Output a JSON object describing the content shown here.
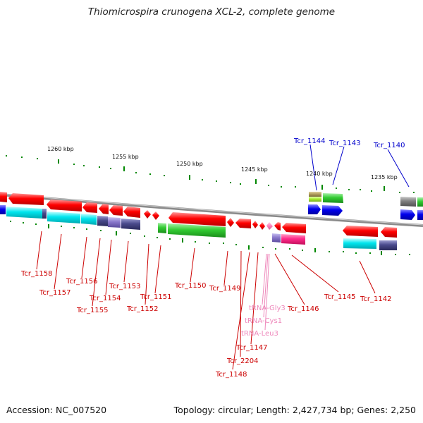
{
  "title": "Thiomicrospira crunogena XCL-2, complete genome",
  "footer": {
    "accession": "Accession: NC_007520",
    "topology": "Topology: circular; Length: 2,427,734 bp; Genes: 2,250"
  },
  "scale_labels": [
    {
      "text": "1260 kbp"
    },
    {
      "text": "1255 kbp"
    },
    {
      "text": "1250 kbp"
    },
    {
      "text": "1245 kbp"
    },
    {
      "text": "1240 kbp"
    },
    {
      "text": "1235 kbp"
    }
  ],
  "gene_labels": {
    "top": [
      {
        "text": "Tcr_1144"
      },
      {
        "text": "Tcr_1143"
      },
      {
        "text": "Tcr_1140"
      }
    ],
    "bottom": [
      {
        "text": "Tcr_1158"
      },
      {
        "text": "Tcr_1157"
      },
      {
        "text": "Tcr_1156"
      },
      {
        "text": "Tcr_1154"
      },
      {
        "text": "Tcr_1155"
      },
      {
        "text": "Tcr_1153"
      },
      {
        "text": "Tcr_1152"
      },
      {
        "text": "Tcr_1151"
      },
      {
        "text": "Tcr_1150"
      },
      {
        "text": "Tcr_1149"
      },
      {
        "text": "Tcr_1148"
      },
      {
        "text": "Tcr_2204"
      },
      {
        "text": "Tcr_1147"
      },
      {
        "text": "Tcr_1146"
      },
      {
        "text": "Tcr_1145"
      },
      {
        "text": "Tcr_1142"
      }
    ],
    "trna": [
      {
        "text": "tRNA-Gly3"
      },
      {
        "text": "tRNA-Cys1"
      },
      {
        "text": "tRNA-Leu3"
      }
    ]
  },
  "colors": {
    "red": "#ff0000",
    "green": "#33cc33",
    "cyan": "#00e5ee",
    "blue": "#0000ee",
    "navy": "#4a4a8c",
    "magenta": "#ff2a8a",
    "purple": "#8a78cc",
    "olive": "#b4a060",
    "lime": "#aaee33",
    "gray": "#808080",
    "label_red": "#cc0000",
    "label_blue": "#0000cc",
    "label_pink": "#ee88bb",
    "backbone": "#8a8a8a",
    "tick_green": "#008800"
  }
}
